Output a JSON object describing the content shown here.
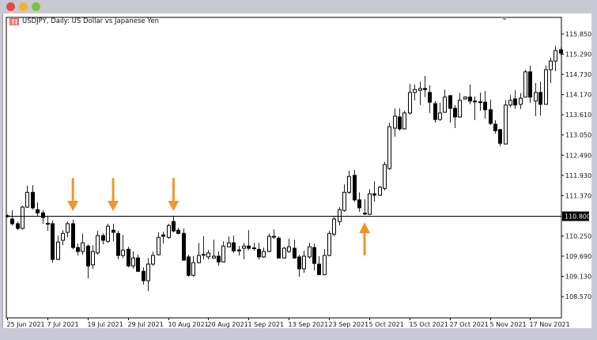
{
  "window": {
    "buttons": [
      {
        "name": "close",
        "color": "#e24b3f"
      },
      {
        "name": "minimize",
        "color": "#f1b22d"
      },
      {
        "name": "maximize",
        "color": "#7cc23b"
      }
    ]
  },
  "chart_title": "USDJPY, Daily:  US Dollar vs Japanese Yen",
  "chart_data": {
    "type": "candlestick",
    "symbol": "USDJPY",
    "timeframe": "Daily",
    "ylim": [
      107.98,
      116.31
    ],
    "grid": false,
    "bull_color": "#ffffff",
    "bear_color": "#000000",
    "y_ticks": [
      "115.850",
      "115.290",
      "114.730",
      "114.170",
      "113.610",
      "113.050",
      "112.490",
      "111.930",
      "111.370",
      "110.250",
      "109.690",
      "109.130",
      "108.570"
    ],
    "x_ticks": [
      {
        "bar": 0,
        "label": "25 Jun 2021"
      },
      {
        "bar": 8,
        "label": "7 Jul 2021"
      },
      {
        "bar": 16,
        "label": "19 Jul 2021"
      },
      {
        "bar": 24,
        "label": "29 Jul 2021"
      },
      {
        "bar": 32,
        "label": "10 Aug 2021"
      },
      {
        "bar": 40,
        "label": "20 Aug 2021"
      },
      {
        "bar": 48,
        "label": "1 Sep 2021"
      },
      {
        "bar": 56,
        "label": "13 Sep 2021"
      },
      {
        "bar": 64,
        "label": "23 Sep 2021"
      },
      {
        "bar": 72,
        "label": "5 Oct 2021"
      },
      {
        "bar": 80,
        "label": "15 Oct 2021"
      },
      {
        "bar": 88,
        "label": "27 Oct 2021"
      },
      {
        "bar": 96,
        "label": "5 Nov 2021"
      },
      {
        "bar": 104,
        "label": "17 Nov 2021"
      }
    ],
    "horizontal_line": {
      "price": 110.8,
      "label": "110.800",
      "color": "#000000"
    },
    "annotations": [
      {
        "type": "arrow",
        "direction": "down",
        "bar": 13,
        "color": "#f0952a"
      },
      {
        "type": "arrow",
        "direction": "down",
        "bar": 21,
        "color": "#f0952a"
      },
      {
        "type": "arrow",
        "direction": "down",
        "bar": 33,
        "color": "#f0952a"
      },
      {
        "type": "arrow",
        "direction": "up",
        "bar": 71,
        "color": "#f0952a"
      }
    ],
    "ohlc": [
      [
        110.81,
        110.85,
        110.76,
        110.8
      ],
      [
        110.72,
        110.96,
        110.54,
        110.59
      ],
      [
        110.59,
        110.65,
        110.41,
        110.46
      ],
      [
        110.46,
        111.09,
        110.43,
        111.05
      ],
      [
        111.05,
        111.64,
        111.03,
        111.46
      ],
      [
        111.46,
        111.66,
        110.98,
        111.03
      ],
      [
        110.98,
        111.18,
        110.81,
        110.89
      ],
      [
        110.89,
        110.96,
        110.59,
        110.76
      ],
      [
        110.6,
        110.81,
        110.39,
        110.59
      ],
      [
        110.59,
        110.67,
        109.51,
        109.6
      ],
      [
        109.6,
        110.26,
        109.58,
        110.08
      ],
      [
        110.13,
        110.41,
        109.99,
        110.32
      ],
      [
        110.35,
        110.65,
        110.21,
        110.59
      ],
      [
        110.59,
        110.7,
        109.88,
        109.93
      ],
      [
        109.93,
        110.04,
        109.71,
        109.82
      ],
      [
        109.82,
        110.32,
        109.73,
        110.06
      ],
      [
        109.97,
        110.02,
        109.07,
        109.42
      ],
      [
        109.45,
        109.99,
        109.34,
        109.82
      ],
      [
        109.78,
        110.39,
        109.73,
        110.26
      ],
      [
        110.26,
        110.32,
        110.02,
        110.13
      ],
      [
        110.1,
        110.59,
        110.06,
        110.52
      ],
      [
        110.41,
        110.59,
        110.1,
        110.35
      ],
      [
        110.32,
        110.39,
        109.6,
        109.71
      ],
      [
        109.71,
        110.28,
        109.64,
        109.86
      ],
      [
        109.88,
        109.95,
        109.38,
        109.42
      ],
      [
        109.42,
        109.82,
        109.34,
        109.64
      ],
      [
        109.64,
        109.73,
        109.25,
        109.27
      ],
      [
        109.27,
        109.38,
        108.9,
        109.01
      ],
      [
        109.01,
        109.64,
        108.72,
        109.47
      ],
      [
        109.47,
        109.82,
        109.42,
        109.71
      ],
      [
        109.73,
        110.35,
        109.71,
        110.21
      ],
      [
        110.28,
        110.37,
        110.04,
        110.24
      ],
      [
        110.21,
        110.59,
        110.17,
        110.54
      ],
      [
        110.65,
        110.81,
        110.35,
        110.39
      ],
      [
        110.41,
        110.48,
        110.3,
        110.32
      ],
      [
        110.32,
        110.46,
        109.56,
        109.58
      ],
      [
        109.67,
        109.73,
        109.12,
        109.16
      ],
      [
        109.16,
        109.69,
        109.12,
        109.51
      ],
      [
        109.51,
        110.06,
        109.49,
        109.71
      ],
      [
        109.73,
        110.24,
        109.6,
        109.74
      ],
      [
        109.67,
        109.86,
        109.6,
        109.78
      ],
      [
        109.64,
        110.15,
        109.62,
        109.69
      ],
      [
        109.69,
        109.82,
        109.42,
        109.53
      ],
      [
        109.53,
        110.1,
        109.53,
        109.97
      ],
      [
        109.95,
        110.24,
        109.93,
        110.06
      ],
      [
        110.06,
        110.26,
        109.78,
        109.84
      ],
      [
        109.84,
        109.97,
        109.71,
        109.86
      ],
      [
        109.91,
        110.06,
        109.6,
        109.97
      ],
      [
        109.97,
        110.41,
        109.86,
        109.91
      ],
      [
        109.91,
        110.06,
        109.84,
        109.92
      ],
      [
        109.88,
        110.06,
        109.6,
        109.67
      ],
      [
        109.67,
        109.93,
        109.64,
        109.82
      ],
      [
        109.82,
        110.32,
        109.8,
        110.24
      ],
      [
        110.24,
        110.43,
        110.17,
        110.23
      ],
      [
        110.19,
        110.24,
        109.62,
        109.64
      ],
      [
        109.64,
        109.95,
        109.62,
        109.91
      ],
      [
        109.82,
        110.17,
        109.78,
        109.95
      ],
      [
        109.91,
        110.15,
        109.62,
        109.64
      ],
      [
        109.67,
        109.73,
        109.12,
        109.34
      ],
      [
        109.34,
        109.84,
        109.23,
        109.69
      ],
      [
        109.67,
        110.06,
        109.62,
        109.95
      ],
      [
        109.93,
        110.04,
        109.29,
        109.49
      ],
      [
        109.47,
        109.69,
        109.16,
        109.18
      ],
      [
        109.18,
        109.88,
        109.16,
        109.71
      ],
      [
        109.71,
        110.39,
        109.69,
        110.32
      ],
      [
        110.3,
        110.78,
        110.24,
        110.72
      ],
      [
        110.65,
        111.05,
        110.54,
        110.98
      ],
      [
        110.96,
        111.68,
        110.92,
        111.46
      ],
      [
        111.46,
        112.06,
        111.42,
        111.9
      ],
      [
        111.93,
        112.08,
        111.2,
        111.25
      ],
      [
        111.25,
        111.46,
        110.92,
        111.03
      ],
      [
        110.87,
        111.27,
        110.83,
        110.88
      ],
      [
        110.85,
        111.55,
        110.83,
        111.42
      ],
      [
        111.42,
        111.77,
        111.2,
        111.38
      ],
      [
        111.38,
        111.64,
        111.36,
        111.6
      ],
      [
        111.57,
        112.3,
        111.51,
        112.23
      ],
      [
        112.12,
        113.39,
        112.08,
        113.28
      ],
      [
        113.24,
        113.79,
        113.0,
        113.57
      ],
      [
        113.55,
        113.79,
        113.17,
        113.22
      ],
      [
        113.22,
        113.72,
        113.2,
        113.66
      ],
      [
        113.66,
        114.47,
        113.61,
        114.23
      ],
      [
        114.23,
        114.45,
        114.01,
        114.31
      ],
      [
        114.29,
        114.53,
        113.88,
        114.34
      ],
      [
        114.34,
        114.69,
        114.1,
        114.31
      ],
      [
        114.23,
        114.43,
        113.66,
        113.96
      ],
      [
        113.92,
        113.99,
        113.39,
        113.48
      ],
      [
        113.48,
        113.94,
        113.44,
        113.66
      ],
      [
        113.68,
        114.31,
        113.66,
        114.1
      ],
      [
        114.14,
        114.16,
        113.39,
        113.79
      ],
      [
        113.79,
        113.88,
        113.24,
        113.55
      ],
      [
        113.55,
        114.21,
        113.53,
        114.01
      ],
      [
        114.05,
        114.12,
        114.03,
        114.1
      ],
      [
        114.1,
        114.45,
        113.9,
        113.99
      ],
      [
        113.99,
        114.12,
        113.46,
        113.98
      ],
      [
        113.97,
        114.23,
        113.72,
        113.96
      ],
      [
        113.96,
        114.27,
        113.5,
        113.75
      ],
      [
        113.75,
        114.03,
        113.33,
        113.37
      ],
      [
        113.35,
        113.46,
        113.09,
        113.17
      ],
      [
        113.2,
        113.22,
        112.74,
        112.82
      ],
      [
        112.8,
        114.01,
        112.8,
        113.88
      ],
      [
        113.88,
        114.16,
        113.81,
        114.01
      ],
      [
        114.05,
        114.29,
        113.77,
        113.88
      ],
      [
        113.9,
        114.21,
        113.77,
        114.07
      ],
      [
        114.1,
        114.86,
        114.1,
        114.8
      ],
      [
        114.8,
        114.97,
        113.94,
        114.1
      ],
      [
        113.99,
        114.49,
        113.57,
        114.23
      ],
      [
        114.23,
        114.53,
        113.59,
        113.9
      ],
      [
        113.9,
        114.97,
        113.9,
        114.86
      ],
      [
        114.86,
        115.19,
        114.49,
        115.1
      ],
      [
        115.1,
        115.52,
        114.82,
        115.39
      ],
      [
        115.41,
        115.48,
        115.26,
        115.32
      ]
    ]
  }
}
